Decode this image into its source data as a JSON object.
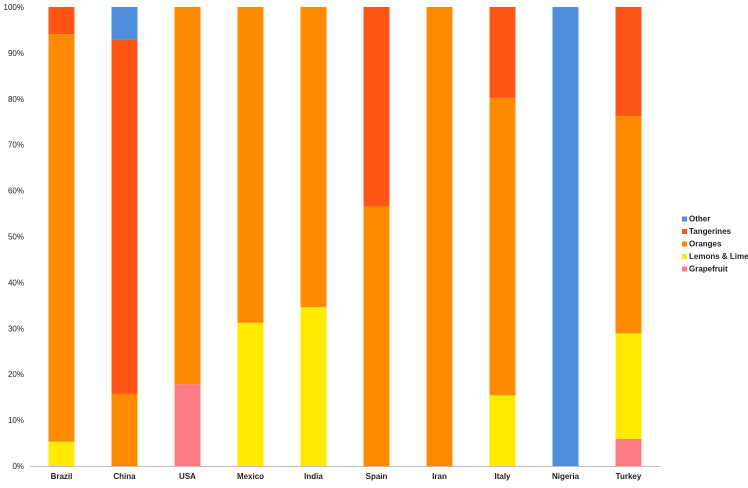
{
  "chart_data": {
    "type": "bar",
    "stacked": true,
    "normalized": true,
    "categories": [
      "Brazil",
      "China",
      "USA",
      "Mexico",
      "India",
      "Spain",
      "Iran",
      "Italy",
      "Nigeria",
      "Turkey"
    ],
    "ylim": [
      0,
      100
    ],
    "y_ticks": [
      "0%",
      "10%",
      "20%",
      "30%",
      "40%",
      "50%",
      "60%",
      "70%",
      "80%",
      "90%",
      "100%"
    ],
    "grid": false,
    "legend_position": "right",
    "series": [
      {
        "name": "Grapefruit",
        "color": "#ff7b87",
        "values": [
          0,
          0,
          17.8,
          0,
          0,
          0,
          0,
          0,
          0,
          5.9
        ]
      },
      {
        "name": "Lemons & Lime",
        "color": "#ffea00",
        "values": [
          5.3,
          0,
          0,
          31.2,
          34.6,
          0,
          0,
          15.4,
          0,
          23.0
        ]
      },
      {
        "name": "Oranges",
        "color": "#ff8a00",
        "values": [
          88.8,
          15.7,
          82.2,
          68.8,
          65.4,
          56.5,
          100,
          64.8,
          0,
          47.3
        ]
      },
      {
        "name": "Tangerines",
        "color": "#fe5516",
        "values": [
          5.9,
          77.3,
          0,
          0,
          0,
          43.5,
          0,
          19.8,
          0,
          23.8
        ]
      },
      {
        "name": "Other",
        "color": "#4e8fdb",
        "values": [
          0,
          7.0,
          0,
          0,
          0,
          0,
          0,
          0,
          100,
          0
        ]
      }
    ],
    "legend_order": [
      "Other",
      "Tangerines",
      "Oranges",
      "Lemons & Lime",
      "Grapefruit"
    ]
  }
}
